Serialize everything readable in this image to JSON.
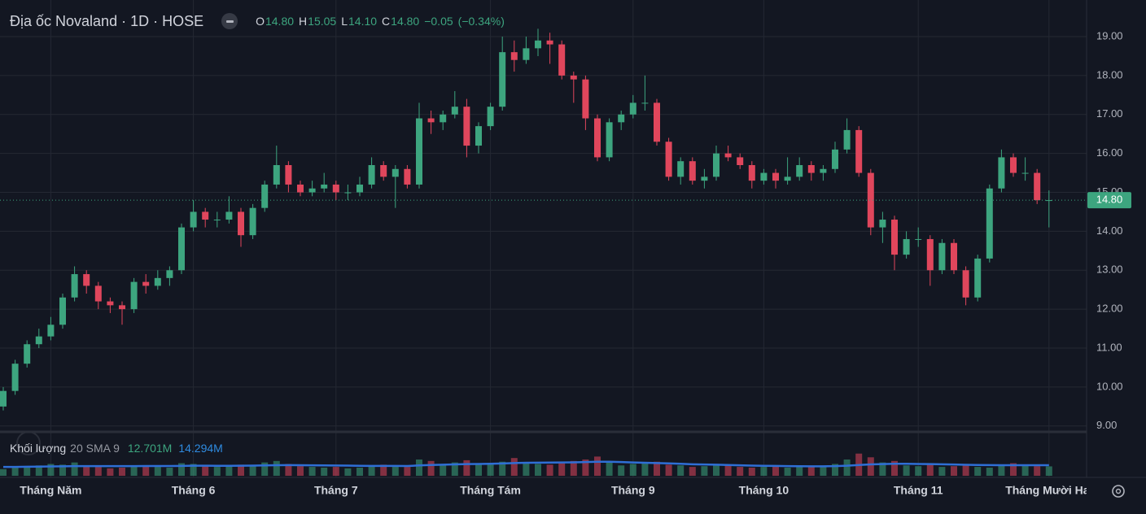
{
  "chart_data": {
    "type": "candlestick",
    "title": "Địa ốc Novaland · 1D · HOSE",
    "ohlc_legend": [
      {
        "label": "O",
        "value": {
          "value": 14.8,
          "label": "14.80"
        }
      },
      {
        "label": "H",
        "value": {
          "value": 15.05,
          "label": "15.05"
        }
      },
      {
        "label": "L",
        "value": {
          "value": 14.1,
          "label": "14.10"
        }
      },
      {
        "label": "C",
        "value": {
          "value": 14.8,
          "label": "14.80"
        }
      }
    ],
    "change": {
      "value": -0.05,
      "label": "−0.05"
    },
    "change_percent": {
      "value": -0.34,
      "label": "(−0.34%)"
    },
    "last_price": {
      "value": 14.8,
      "label": "14.80"
    },
    "up_color": "#3da57f",
    "down_color": "#e0465c",
    "grid": true,
    "categories": [
      null,
      null,
      null,
      null,
      "Tháng Năm",
      null,
      null,
      null,
      null,
      null,
      null,
      null,
      null,
      null,
      null,
      null,
      "Tháng 6",
      null,
      null,
      null,
      null,
      null,
      null,
      null,
      null,
      null,
      null,
      null,
      "Tháng 7",
      null,
      null,
      null,
      null,
      null,
      null,
      null,
      null,
      null,
      null,
      null,
      null,
      "Tháng Tám",
      null,
      null,
      null,
      null,
      null,
      null,
      null,
      null,
      null,
      null,
      null,
      "Tháng 9",
      null,
      null,
      null,
      null,
      null,
      null,
      null,
      null,
      null,
      null,
      "Tháng 10",
      null,
      null,
      null,
      null,
      null,
      null,
      null,
      null,
      null,
      null,
      null,
      null,
      "Tháng 11",
      null,
      null,
      null,
      null,
      null,
      null,
      null,
      null,
      null,
      null,
      "Tháng Mười Hai"
    ],
    "open": [
      9.5,
      9.9,
      10.6,
      11.1,
      11.3,
      11.6,
      12.3,
      12.9,
      12.6,
      12.2,
      12.1,
      12.0,
      12.7,
      12.6,
      12.8,
      13.0,
      14.1,
      14.5,
      14.3,
      14.3,
      14.5,
      13.9,
      14.6,
      15.2,
      15.7,
      15.2,
      15.0,
      15.1,
      15.2,
      15.0,
      15.0,
      15.2,
      15.7,
      15.4,
      15.6,
      15.2,
      16.9,
      16.8,
      17.0,
      17.2,
      16.2,
      16.7,
      17.2,
      18.6,
      18.4,
      18.7,
      18.9,
      18.8,
      18.0,
      17.9,
      16.9,
      15.9,
      16.8,
      17.0,
      17.3,
      17.3,
      16.3,
      15.4,
      15.8,
      15.3,
      15.4,
      16.0,
      15.9,
      15.7,
      15.3,
      15.5,
      15.3,
      15.4,
      15.7,
      15.5,
      15.6,
      16.1,
      16.6,
      15.5,
      14.1,
      14.3,
      13.4,
      13.8,
      13.8,
      13.0,
      13.7,
      13.0,
      12.3,
      13.3,
      15.1,
      15.9,
      15.5,
      15.5,
      14.8
    ],
    "high": [
      10.0,
      10.7,
      11.2,
      11.5,
      11.8,
      12.4,
      13.1,
      13.0,
      12.7,
      12.3,
      12.2,
      12.8,
      12.9,
      13.0,
      13.1,
      14.2,
      14.8,
      14.6,
      14.5,
      14.9,
      14.6,
      14.7,
      15.3,
      16.2,
      15.8,
      15.3,
      15.3,
      15.5,
      15.3,
      15.2,
      15.4,
      15.9,
      15.8,
      15.7,
      15.7,
      17.3,
      17.1,
      17.1,
      17.6,
      17.4,
      16.8,
      17.3,
      19.0,
      18.9,
      19.0,
      19.2,
      19.1,
      18.9,
      18.1,
      18.0,
      17.0,
      16.9,
      17.1,
      17.5,
      18.0,
      17.4,
      16.4,
      15.9,
      15.9,
      15.6,
      16.2,
      16.2,
      16.0,
      15.8,
      15.6,
      15.6,
      15.9,
      15.9,
      15.8,
      15.7,
      16.3,
      16.9,
      16.7,
      15.6,
      14.5,
      14.4,
      14.0,
      14.1,
      13.9,
      13.8,
      13.8,
      13.1,
      13.4,
      15.2,
      16.1,
      16.0,
      15.9,
      15.6,
      15.05
    ],
    "low": [
      9.4,
      9.8,
      10.5,
      11.0,
      11.2,
      11.5,
      12.2,
      12.4,
      12.0,
      11.9,
      11.6,
      11.9,
      12.4,
      12.5,
      12.6,
      12.9,
      14.0,
      14.1,
      14.1,
      14.2,
      13.6,
      13.8,
      14.5,
      15.1,
      15.0,
      14.9,
      14.9,
      15.0,
      14.8,
      14.8,
      14.9,
      15.1,
      15.3,
      14.6,
      15.1,
      15.1,
      16.5,
      16.6,
      16.9,
      15.9,
      16.0,
      16.6,
      17.1,
      18.1,
      18.3,
      18.5,
      18.3,
      17.9,
      17.3,
      16.6,
      15.8,
      15.8,
      16.6,
      16.9,
      17.1,
      16.2,
      15.3,
      15.2,
      15.2,
      15.1,
      15.3,
      15.8,
      15.6,
      15.1,
      15.2,
      15.1,
      15.2,
      15.3,
      15.3,
      15.3,
      15.5,
      16.0,
      15.4,
      13.9,
      13.7,
      13.0,
      13.3,
      13.6,
      12.6,
      12.9,
      12.9,
      12.1,
      12.2,
      13.2,
      15.0,
      15.4,
      15.3,
      14.7,
      14.1
    ],
    "close": [
      9.9,
      10.6,
      11.1,
      11.3,
      11.6,
      12.3,
      12.9,
      12.6,
      12.2,
      12.1,
      12.0,
      12.7,
      12.6,
      12.8,
      13.0,
      14.1,
      14.5,
      14.3,
      14.3,
      14.5,
      13.9,
      14.6,
      15.2,
      15.7,
      15.2,
      15.0,
      15.1,
      15.2,
      15.0,
      15.0,
      15.2,
      15.7,
      15.4,
      15.6,
      15.2,
      16.9,
      16.8,
      17.0,
      17.2,
      16.2,
      16.7,
      17.2,
      18.6,
      18.4,
      18.7,
      18.9,
      18.8,
      18.0,
      17.9,
      16.9,
      15.9,
      16.8,
      17.0,
      17.3,
      17.3,
      16.3,
      15.4,
      15.8,
      15.3,
      15.4,
      16.0,
      15.9,
      15.7,
      15.3,
      15.5,
      15.3,
      15.4,
      15.7,
      15.5,
      15.6,
      16.1,
      16.6,
      15.5,
      14.1,
      14.3,
      13.4,
      13.8,
      13.8,
      13.0,
      13.7,
      13.0,
      12.3,
      13.3,
      15.1,
      15.9,
      15.5,
      15.5,
      14.8,
      14.8
    ],
    "ylim": [
      8.87,
      19.94
    ],
    "yticks": [
      {
        "value": 9,
        "label": "9.00"
      },
      {
        "value": 10,
        "label": "10.00"
      },
      {
        "value": 11,
        "label": "11.00"
      },
      {
        "value": 12,
        "label": "12.00"
      },
      {
        "value": 13,
        "label": "13.00"
      },
      {
        "value": 14,
        "label": "14.00"
      },
      {
        "value": 15,
        "label": "15.00"
      },
      {
        "value": 16,
        "label": "16.00"
      },
      {
        "value": 17,
        "label": "17.00"
      },
      {
        "value": 18,
        "label": "18.00"
      },
      {
        "value": 19,
        "label": "19.00"
      }
    ],
    "volume": {
      "name": "Khối lượng",
      "indicator": "20 SMA 9",
      "ylim": [
        0,
        55
      ],
      "sma_color": "#2f6fd6",
      "values": [
        9,
        11,
        12,
        14,
        16,
        15,
        18,
        13,
        12,
        10,
        11,
        14,
        13,
        12,
        11,
        17,
        16,
        14,
        12,
        13,
        15,
        14,
        18,
        20,
        16,
        13,
        12,
        11,
        12,
        10,
        11,
        14,
        15,
        13,
        12,
        22,
        20,
        16,
        18,
        21,
        15,
        17,
        19,
        24,
        18,
        16,
        15,
        17,
        20,
        22,
        26,
        18,
        14,
        16,
        17,
        19,
        15,
        14,
        12,
        13,
        16,
        14,
        12,
        11,
        12,
        13,
        11,
        12,
        13,
        14,
        16,
        22,
        30,
        25,
        18,
        20,
        14,
        13,
        15,
        12,
        13,
        14,
        12,
        11,
        15,
        17,
        14,
        13,
        12.701
      ],
      "sma": [
        12,
        12,
        12.2,
        12.4,
        12.6,
        12.8,
        13,
        13.1,
        13.1,
        13,
        13,
        13.1,
        13.2,
        13.2,
        13.2,
        13.4,
        13.6,
        13.6,
        13.5,
        13.5,
        13.6,
        13.7,
        14,
        14.3,
        14.4,
        14.3,
        14.2,
        14,
        13.9,
        13.7,
        13.5,
        13.4,
        13.4,
        13.3,
        13.2,
        14,
        14.6,
        15,
        15.4,
        15.8,
        16,
        16.2,
        16.6,
        17.2,
        17.6,
        17.8,
        17.9,
        18,
        18.2,
        18.5,
        19,
        19,
        18.5,
        18,
        17.6,
        17.2,
        16.8,
        16.2,
        15.6,
        15.2,
        15,
        14.6,
        14.2,
        13.8,
        13.5,
        13.3,
        13.1,
        12.9,
        12.8,
        12.8,
        13,
        13.6,
        14.6,
        15.4,
        15.8,
        16.2,
        16.2,
        16,
        15.8,
        15.5,
        15.2,
        14.9,
        14.6,
        14.4,
        14.3,
        14.3,
        14.3,
        14.3,
        14.294
      ],
      "legend_values": [
        {
          "value": 12.701,
          "label": "12.701M"
        },
        {
          "value": 14.294,
          "label": "14.294M"
        }
      ]
    }
  }
}
